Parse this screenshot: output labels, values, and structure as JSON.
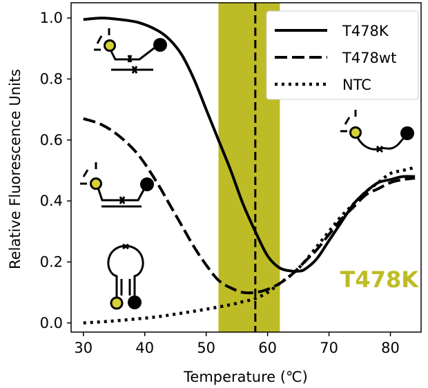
{
  "chart_data": {
    "type": "line",
    "title": "",
    "xlabel": "Temperature (℃)",
    "ylabel": "Relative Fluorescence Units",
    "xlim": [
      28,
      85
    ],
    "ylim": [
      -0.03,
      1.05
    ],
    "xticks": [
      30,
      40,
      50,
      60,
      70,
      80
    ],
    "xtick_labels": [
      "30",
      "40",
      "50",
      "60",
      "70",
      "80"
    ],
    "yticks": [
      0.0,
      0.2,
      0.4,
      0.6,
      0.8,
      1.0
    ],
    "ytick_labels": [
      "0.0",
      "0.2",
      "0.4",
      "0.6",
      "0.8",
      "1.0"
    ],
    "grid": false,
    "legend_position": "top-right",
    "highlight_band": {
      "x_start": 52,
      "x_end": 62,
      "color": "#bdbc26"
    },
    "vertical_line": {
      "x": 58,
      "style": "dashed"
    },
    "annotation": {
      "text": "T478K",
      "color": "#bdbc26"
    },
    "series": [
      {
        "name": "T478K",
        "style": "solid",
        "x": [
          30,
          33,
          36,
          39,
          42,
          44,
          46,
          48,
          50,
          52,
          54,
          56,
          58,
          60,
          62,
          64,
          65,
          66,
          68,
          70,
          72,
          74,
          76,
          78,
          80,
          82,
          84
        ],
        "y": [
          0.995,
          1.0,
          0.995,
          0.985,
          0.96,
          0.93,
          0.88,
          0.8,
          0.7,
          0.6,
          0.5,
          0.39,
          0.3,
          0.22,
          0.18,
          0.17,
          0.17,
          0.175,
          0.21,
          0.27,
          0.33,
          0.39,
          0.43,
          0.46,
          0.47,
          0.48,
          0.48
        ]
      },
      {
        "name": "T478wt",
        "style": "dashed",
        "x": [
          30,
          33,
          36,
          39,
          42,
          44,
          46,
          48,
          50,
          52,
          54,
          56,
          58,
          60,
          62,
          64,
          66,
          68,
          70,
          72,
          74,
          76,
          78,
          80,
          82,
          84
        ],
        "y": [
          0.67,
          0.65,
          0.61,
          0.55,
          0.46,
          0.39,
          0.32,
          0.25,
          0.19,
          0.14,
          0.115,
          0.1,
          0.1,
          0.11,
          0.13,
          0.16,
          0.2,
          0.24,
          0.29,
          0.34,
          0.38,
          0.42,
          0.44,
          0.46,
          0.47,
          0.475
        ]
      },
      {
        "name": "NTC",
        "style": "dotted",
        "x": [
          30,
          34,
          38,
          42,
          46,
          50,
          54,
          56,
          58,
          60,
          62,
          64,
          66,
          68,
          70,
          72,
          74,
          76,
          78,
          80,
          82,
          84
        ],
        "y": [
          0.0,
          0.005,
          0.012,
          0.02,
          0.032,
          0.045,
          0.06,
          0.07,
          0.08,
          0.1,
          0.13,
          0.16,
          0.2,
          0.25,
          0.3,
          0.35,
          0.39,
          0.43,
          0.46,
          0.49,
          0.5,
          0.51
        ]
      }
    ]
  },
  "icons": {
    "fluorophore_color": "#d6d23a",
    "quencher_color": "#000000",
    "names": [
      "duplex-probe-icon",
      "mismatch-duplex-probe-icon",
      "hairpin-probe-icon",
      "single-strand-probe-icon"
    ]
  }
}
